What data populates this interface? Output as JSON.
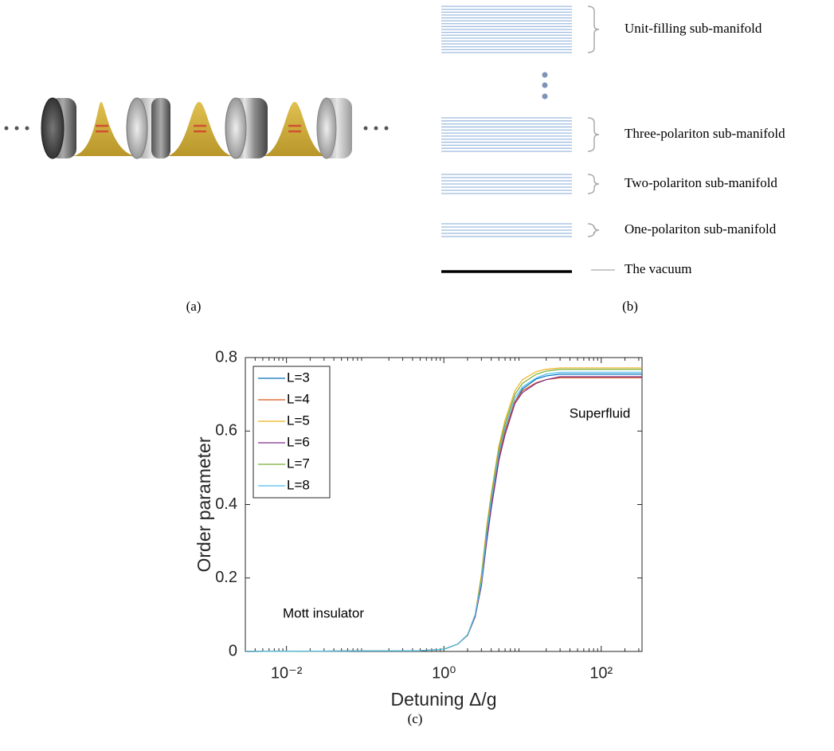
{
  "panel_a": {
    "caption": "(a)"
  },
  "panel_b": {
    "caption": "(b)",
    "manifolds": [
      "Unit-filling sub-manifold",
      "Three-polariton sub-manifold",
      "Two-polariton sub-manifold",
      "One-polariton sub-manifold",
      "The vacuum"
    ]
  },
  "panel_c": {
    "caption": "(c)"
  },
  "chart_data": {
    "type": "line",
    "x_label": "Detuning Δ/g",
    "y_label": "Order parameter",
    "annotations": [
      "Superfluid",
      "Mott insulator"
    ],
    "x": [
      0.003,
      0.5,
      1,
      1.5,
      2,
      2.5,
      3,
      3.5,
      4,
      5,
      6,
      8,
      10,
      15,
      20,
      30,
      100,
      330
    ],
    "series": [
      {
        "name": "L=3",
        "color": "#0072BD",
        "values": [
          0,
          0.002,
          0.006,
          0.02,
          0.044,
          0.095,
          0.18,
          0.3,
          0.39,
          0.52,
          0.6,
          0.68,
          0.715,
          0.742,
          0.75,
          0.755,
          0.755,
          0.755
        ]
      },
      {
        "name": "L=4",
        "color": "#D95319",
        "values": [
          0,
          0.002,
          0.006,
          0.02,
          0.044,
          0.095,
          0.19,
          0.31,
          0.4,
          0.53,
          0.6,
          0.68,
          0.71,
          0.732,
          0.74,
          0.745,
          0.745,
          0.745
        ]
      },
      {
        "name": "L=5",
        "color": "#EDB120",
        "values": [
          0,
          0.002,
          0.006,
          0.02,
          0.046,
          0.1,
          0.21,
          0.34,
          0.43,
          0.56,
          0.63,
          0.71,
          0.74,
          0.762,
          0.768,
          0.772,
          0.772,
          0.772
        ]
      },
      {
        "name": "L=6",
        "color": "#7E2F8E",
        "values": [
          0,
          0.002,
          0.006,
          0.02,
          0.044,
          0.095,
          0.18,
          0.3,
          0.39,
          0.52,
          0.59,
          0.675,
          0.705,
          0.73,
          0.74,
          0.748,
          0.748,
          0.748
        ]
      },
      {
        "name": "L=7",
        "color": "#77AC30",
        "values": [
          0,
          0.002,
          0.006,
          0.02,
          0.045,
          0.1,
          0.2,
          0.33,
          0.42,
          0.55,
          0.62,
          0.7,
          0.73,
          0.755,
          0.763,
          0.768,
          0.768,
          0.768
        ]
      },
      {
        "name": "L=8",
        "color": "#4DBEEE",
        "values": [
          0,
          0.002,
          0.006,
          0.02,
          0.045,
          0.1,
          0.19,
          0.32,
          0.41,
          0.54,
          0.61,
          0.69,
          0.72,
          0.745,
          0.755,
          0.76,
          0.76,
          0.76
        ]
      }
    ],
    "xlim": [
      0.003,
      330
    ],
    "xscale": "log",
    "xticks": [
      {
        "value": 0.01,
        "label": "10⁻²"
      },
      {
        "value": 1,
        "label": "10⁰"
      },
      {
        "value": 100,
        "label": "10²"
      }
    ],
    "ylim": [
      0,
      0.8
    ],
    "yticks": [
      0,
      0.2,
      0.4,
      0.6,
      0.8
    ],
    "legend": "upper left",
    "grid": false
  }
}
